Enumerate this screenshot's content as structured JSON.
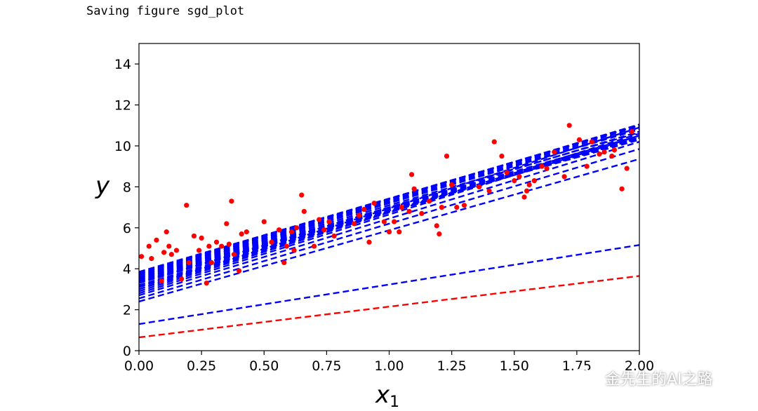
{
  "console": {
    "text": "Saving figure sgd_plot"
  },
  "watermark": {
    "text": "金先生的AI之路",
    "icon": "wechat-icon"
  },
  "colors": {
    "blue": "#0000ff",
    "red": "#ff0000",
    "axis": "#000000"
  },
  "chart_data": {
    "type": "scatter",
    "title": "",
    "xlabel_base": "x",
    "xlabel_sub": "1",
    "ylabel": "y",
    "xlim": [
      0,
      2
    ],
    "ylim": [
      0,
      15
    ],
    "xticks": [
      "0.00",
      "0.25",
      "0.50",
      "0.75",
      "1.00",
      "1.25",
      "1.50",
      "1.75",
      "2.00"
    ],
    "yticks": [
      "0",
      "2",
      "4",
      "6",
      "8",
      "10",
      "12",
      "14"
    ],
    "grid": false,
    "points": {
      "color": "red",
      "x": [
        0.01,
        0.04,
        0.05,
        0.07,
        0.09,
        0.1,
        0.11,
        0.12,
        0.13,
        0.15,
        0.17,
        0.19,
        0.2,
        0.22,
        0.24,
        0.25,
        0.27,
        0.28,
        0.29,
        0.31,
        0.33,
        0.35,
        0.36,
        0.37,
        0.38,
        0.4,
        0.41,
        0.43,
        0.5,
        0.53,
        0.56,
        0.58,
        0.59,
        0.61,
        0.62,
        0.63,
        0.65,
        0.66,
        0.7,
        0.72,
        0.74,
        0.76,
        0.78,
        0.86,
        0.88,
        0.9,
        0.92,
        0.94,
        0.98,
        1.0,
        1.02,
        1.04,
        1.05,
        1.08,
        1.09,
        1.1,
        1.13,
        1.16,
        1.19,
        1.2,
        1.21,
        1.23,
        1.25,
        1.27,
        1.3,
        1.36,
        1.4,
        1.42,
        1.45,
        1.47,
        1.5,
        1.52,
        1.54,
        1.55,
        1.56,
        1.58,
        1.61,
        1.63,
        1.66,
        1.7,
        1.72,
        1.76,
        1.79,
        1.81,
        1.84,
        1.86,
        1.89,
        1.9,
        1.93,
        1.95,
        1.97
      ],
      "y": [
        4.6,
        5.1,
        4.5,
        5.4,
        3.4,
        4.8,
        5.8,
        5.1,
        4.7,
        4.9,
        3.5,
        7.1,
        4.3,
        5.6,
        4.9,
        5.5,
        3.3,
        5.1,
        4.3,
        5.3,
        5.1,
        6.2,
        5.2,
        7.3,
        4.7,
        3.9,
        5.7,
        5.8,
        6.3,
        5.3,
        5.9,
        4.3,
        5.1,
        5.8,
        4.9,
        6.0,
        7.6,
        6.8,
        5.1,
        6.4,
        5.9,
        6.3,
        5.6,
        6.2,
        6.6,
        6.9,
        5.3,
        7.2,
        6.3,
        5.8,
        6.3,
        5.8,
        7.0,
        6.8,
        8.6,
        7.9,
        6.7,
        7.3,
        6.1,
        5.7,
        7.0,
        9.5,
        8.1,
        7.0,
        7.1,
        8.0,
        7.8,
        10.2,
        9.5,
        8.7,
        8.3,
        8.5,
        7.5,
        7.8,
        8.1,
        8.3,
        9.0,
        8.9,
        9.7,
        8.5,
        11.0,
        10.3,
        9.0,
        10.2,
        9.6,
        9.7,
        9.5,
        9.8,
        7.9,
        8.9,
        10.7
      ]
    },
    "lines": [
      {
        "color": "red",
        "b": 0.65,
        "m": 1.5
      },
      {
        "color": "blue",
        "b": 1.3,
        "m": 1.93
      },
      {
        "color": "blue",
        "b": 2.4,
        "m": 3.48
      },
      {
        "color": "blue",
        "b": 2.55,
        "m": 3.65
      },
      {
        "color": "blue",
        "b": 2.7,
        "m": 3.75
      },
      {
        "color": "blue",
        "b": 2.8,
        "m": 3.85
      },
      {
        "color": "blue",
        "b": 2.9,
        "m": 3.85
      },
      {
        "color": "blue",
        "b": 3.0,
        "m": 3.75
      },
      {
        "color": "blue",
        "b": 3.1,
        "m": 3.7
      },
      {
        "color": "blue",
        "b": 3.2,
        "m": 3.6
      },
      {
        "color": "blue",
        "b": 3.3,
        "m": 3.55
      },
      {
        "color": "blue",
        "b": 3.35,
        "m": 3.5
      },
      {
        "color": "blue",
        "b": 3.4,
        "m": 3.45
      },
      {
        "color": "blue",
        "b": 3.45,
        "m": 3.48
      },
      {
        "color": "blue",
        "b": 3.5,
        "m": 3.5
      },
      {
        "color": "blue",
        "b": 3.55,
        "m": 3.55
      },
      {
        "color": "blue",
        "b": 3.6,
        "m": 3.6
      },
      {
        "color": "blue",
        "b": 3.65,
        "m": 3.6
      },
      {
        "color": "blue",
        "b": 3.7,
        "m": 3.62
      },
      {
        "color": "blue",
        "b": 3.75,
        "m": 3.65
      },
      {
        "color": "blue",
        "b": 3.8,
        "m": 3.6
      },
      {
        "color": "blue",
        "b": 3.85,
        "m": 3.58
      },
      {
        "color": "blue",
        "b": 3.3,
        "m": 3.7
      },
      {
        "color": "blue",
        "b": 3.0,
        "m": 3.95
      },
      {
        "color": "blue",
        "b": 3.15,
        "m": 3.62
      }
    ]
  }
}
